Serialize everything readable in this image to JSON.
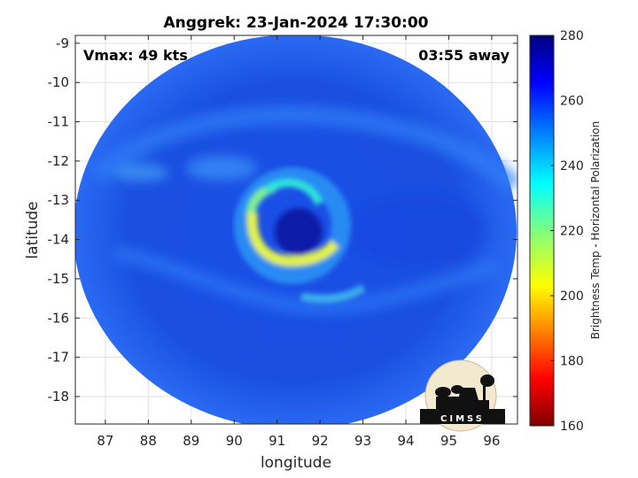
{
  "chart_data": {
    "type": "heatmap",
    "title": "Anggrek: 23-Jan-2024 17:30:00",
    "xlabel": "longitude",
    "ylabel": "latitude",
    "xlim": [
      86.3,
      96.6
    ],
    "ylim": [
      -18.7,
      -8.8
    ],
    "x_ticks": [
      87,
      88,
      89,
      90,
      91,
      92,
      93,
      94,
      95,
      96
    ],
    "y_ticks": [
      -9,
      -10,
      -11,
      -12,
      -13,
      -14,
      -15,
      -16,
      -17,
      -18
    ],
    "grid": true,
    "annotations": {
      "vmax": "Vmax: 49 kts",
      "time_away": "03:55 away"
    },
    "colorbar": {
      "label": "Brightness Temp - Horizontal Polarization",
      "range": [
        160,
        280
      ],
      "ticks": [
        160,
        180,
        200,
        220,
        240,
        260,
        280
      ],
      "colormap": "jet"
    },
    "features": {
      "swath_center": [
        91.3,
        -13.9
      ],
      "eye_center": [
        91.6,
        -13.8
      ],
      "eye_temp_approx": 265,
      "rainband_min_temp_approx": 210,
      "background_temp_approx": 262
    },
    "logo": "CIMSS"
  }
}
